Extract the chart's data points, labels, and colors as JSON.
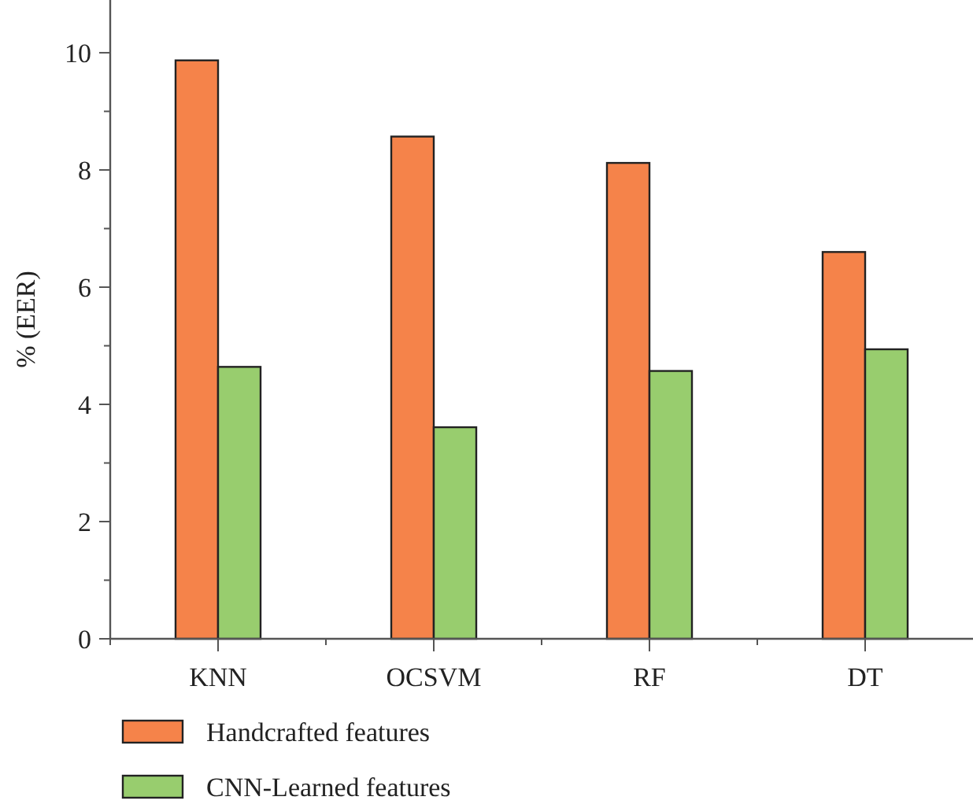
{
  "chart_data": {
    "type": "bar",
    "ylabel": "% (EER)",
    "categories": [
      "KNN",
      "OCSVM",
      "RF",
      "DT"
    ],
    "series": [
      {
        "name": "Handcrafted features",
        "color": "#f5834a",
        "values": [
          9.87,
          8.57,
          8.12,
          6.6
        ]
      },
      {
        "name": "CNN-Learned features",
        "color": "#98cd6e",
        "values": [
          4.64,
          3.61,
          4.57,
          4.94
        ]
      }
    ],
    "ylim": [
      0,
      10.9
    ],
    "yticks": [
      0,
      {
        "value": 1,
        "label": null
      },
      2,
      {
        "value": 3,
        "label": null
      },
      4,
      {
        "value": 5,
        "label": null
      },
      6,
      {
        "value": 7,
        "label": null
      },
      8,
      {
        "value": 9,
        "label": null
      },
      10
    ],
    "grid": false,
    "legend": "bottom"
  }
}
